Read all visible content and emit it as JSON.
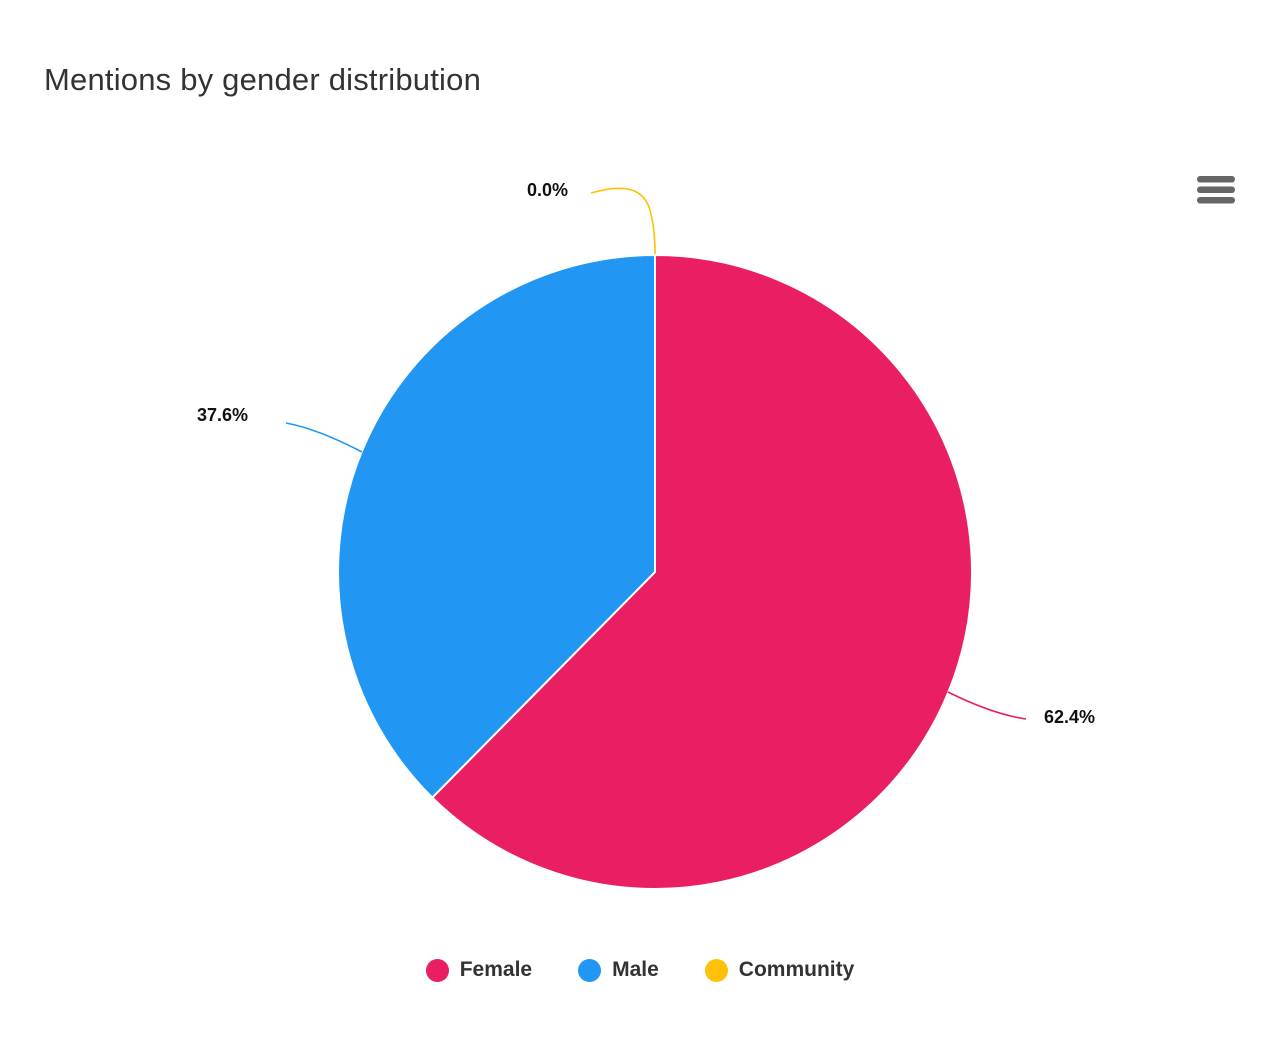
{
  "title": "Mentions by gender distribution",
  "icons": {
    "context_menu": "hamburger-icon"
  },
  "colors": {
    "background": "#ffffff",
    "title_text": "#333333",
    "data_label_text": "#111111",
    "legend_text": "#333333",
    "menu_icon": "#666666",
    "slice_border": "#ffffff"
  },
  "chart_data": {
    "type": "pie",
    "title": "Mentions by gender distribution",
    "legend_position": "bottom",
    "start_angle_deg": 0,
    "direction": "clockwise",
    "slices": [
      {
        "name": "Female",
        "value": 62.4,
        "label": "62.4%",
        "color": "#E91E63"
      },
      {
        "name": "Male",
        "value": 37.6,
        "label": "37.6%",
        "color": "#2196F3"
      },
      {
        "name": "Community",
        "value": 0.0,
        "label": "0.0%",
        "color": "#FFC107"
      }
    ]
  }
}
